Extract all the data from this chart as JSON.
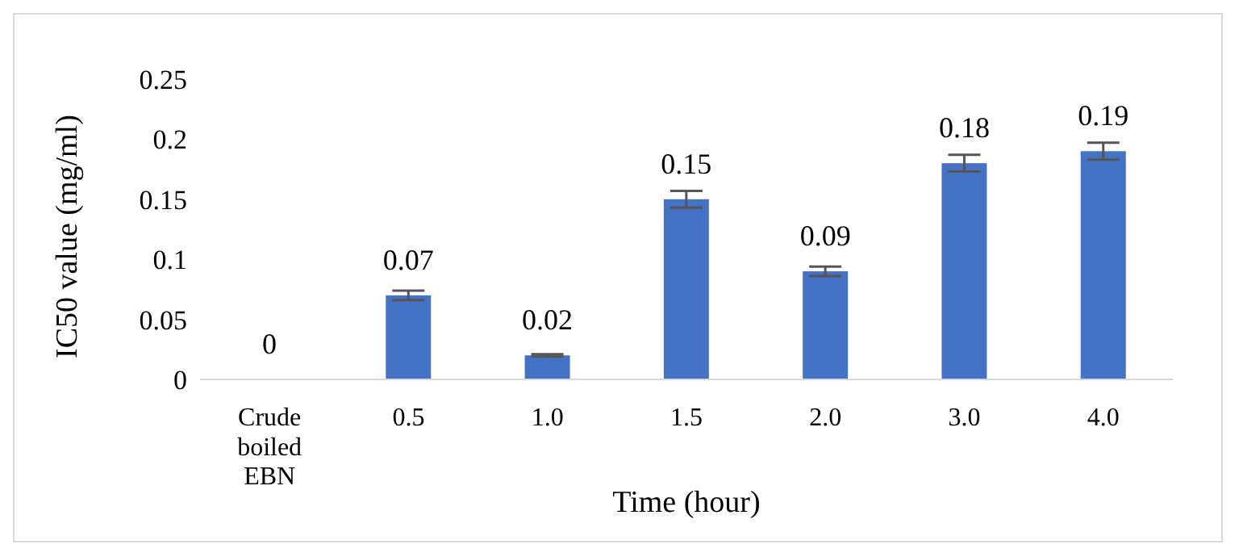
{
  "chart_data": {
    "type": "bar",
    "xlabel": "Time (hour)",
    "ylabel": "IC50 value (mg/ml)",
    "categories": [
      "Crude boiled EBN",
      "0.5",
      "1.0",
      "1.5",
      "2.0",
      "3.0",
      "4.0"
    ],
    "series": [
      {
        "color": "#4472c4",
        "values": [
          0,
          0.07,
          0.02,
          0.15,
          0.09,
          0.18,
          0.19
        ],
        "errors": [
          null,
          0.004,
          0.001,
          0.007,
          0.004,
          0.007,
          0.007
        ]
      }
    ],
    "ylim": [
      0,
      0.25
    ],
    "yticks": [
      0,
      0.05,
      0.1,
      0.15,
      0.2,
      0.25
    ],
    "data_labels": true
  }
}
